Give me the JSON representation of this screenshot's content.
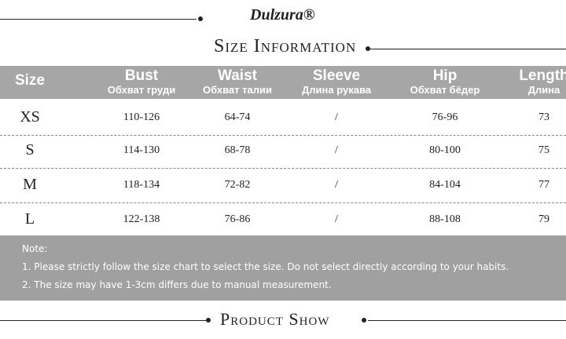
{
  "header": {
    "brand": "Dulzura®",
    "title": "Size Information"
  },
  "table": {
    "columns": [
      {
        "en": "Size"
      },
      {
        "en": "Bust",
        "ru": "Обхват груди"
      },
      {
        "en": "Waist",
        "ru": "Обхват талии"
      },
      {
        "en": "Sleeve",
        "ru": "Длина рукава"
      },
      {
        "en": "Hip",
        "ru": "Обхват бёдер"
      },
      {
        "en": "Length",
        "ru": "Длина"
      }
    ],
    "rows": [
      [
        "XS",
        "110-126",
        "64-74",
        "/",
        "76-96",
        "73"
      ],
      [
        "S",
        "114-130",
        "68-78",
        "/",
        "80-100",
        "75"
      ],
      [
        "M",
        "118-134",
        "72-82",
        "/",
        "84-104",
        "77"
      ],
      [
        "L",
        "122-138",
        "76-86",
        "/",
        "88-108",
        "79"
      ]
    ]
  },
  "notes": [
    "Note:",
    "1. Please strictly follow the size chart to select the size. Do not select directly according to your habits.",
    "2. The size may have 1-3cm differs due to manual measurement."
  ],
  "footer": {
    "title": "Product Show"
  }
}
